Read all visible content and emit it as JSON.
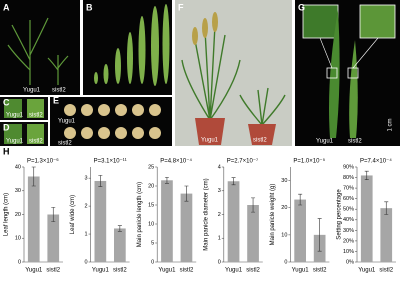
{
  "photos": {
    "A": {
      "label": "A",
      "texts": [
        "Yugu1",
        "sistl2"
      ]
    },
    "B": {
      "label": "B"
    },
    "C": {
      "label": "C",
      "texts": [
        "Yugu1",
        "sistl2"
      ]
    },
    "D": {
      "label": "D",
      "texts": [
        "Yugu1",
        "sistl2"
      ]
    },
    "E": {
      "label": "E",
      "texts": [
        "Yugu1",
        "sistl2"
      ]
    },
    "F": {
      "label": "F",
      "texts": [
        "Yugu1",
        "sistl2"
      ]
    },
    "G": {
      "label": "G",
      "texts": [
        "Yugu1",
        "sistl2",
        "1 cm"
      ]
    }
  },
  "panel_H": "H",
  "chart_data": [
    {
      "type": "bar",
      "ylabel": "Leaf length (cm)",
      "annotation": "P=1.3×10⁻⁶",
      "categories": [
        "Yugu1",
        "sistl2"
      ],
      "values": [
        36,
        20
      ],
      "errors": [
        4,
        3
      ],
      "color": "#a6a6a6",
      "ylim": [
        0,
        40
      ],
      "yticks": [
        0,
        10,
        20,
        30,
        40
      ]
    },
    {
      "type": "bar",
      "ylabel": "Leaf wide (cm)",
      "annotation": "P=3.1×10⁻¹¹",
      "categories": [
        "Yugu1",
        "sistl2"
      ],
      "values": [
        2.9,
        1.2
      ],
      "errors": [
        0.2,
        0.1
      ],
      "color": "#a6a6a6",
      "ylim": [
        0,
        3.4
      ],
      "yticks": [
        0,
        1,
        2,
        3
      ]
    },
    {
      "type": "bar",
      "ylabel": "Main panicle length (cm)",
      "annotation": "P=4.8×10⁻⁴",
      "categories": [
        "Yugu1",
        "sistl2"
      ],
      "values": [
        21.5,
        18
      ],
      "errors": [
        0.8,
        2
      ],
      "color": "#a6a6a6",
      "ylim": [
        0,
        25
      ],
      "yticks": [
        0,
        5,
        10,
        15,
        20,
        25
      ]
    },
    {
      "type": "bar",
      "ylabel": "Main panicle diameter (cm)",
      "annotation": "P=2.7×10⁻⁷",
      "categories": [
        "Yugu1",
        "sistl2"
      ],
      "values": [
        3.4,
        2.4
      ],
      "errors": [
        0.15,
        0.3
      ],
      "color": "#a6a6a6",
      "ylim": [
        0,
        4
      ],
      "yticks": [
        0,
        1,
        2,
        3,
        4
      ]
    },
    {
      "type": "bar",
      "ylabel": "Main panicle weight (g)",
      "annotation": "P=1.0×10⁻⁵",
      "categories": [
        "Yugu1",
        "sistl2"
      ],
      "values": [
        23,
        10
      ],
      "errors": [
        2,
        6
      ],
      "color": "#a6a6a6",
      "ylim": [
        0,
        35
      ],
      "yticks": [
        0,
        10,
        20,
        30
      ]
    },
    {
      "type": "bar",
      "ylabel": "Setting percentage",
      "annotation": "P=7.4×10⁻⁴",
      "categories": [
        "Yugu1",
        "sistl2"
      ],
      "values": [
        82,
        51
      ],
      "errors": [
        4,
        6
      ],
      "color": "#a6a6a6",
      "ylim": [
        0,
        90
      ],
      "yticks": [
        {
          "value": 0,
          "label": "0%"
        },
        {
          "value": 10,
          "label": "10%"
        },
        {
          "value": 20,
          "label": "20%"
        },
        {
          "value": 30,
          "label": "30%"
        },
        {
          "value": 40,
          "label": "40%"
        },
        {
          "value": 50,
          "label": "50%"
        },
        {
          "value": 60,
          "label": "60%"
        },
        {
          "value": 70,
          "label": "70%"
        },
        {
          "value": 80,
          "label": "80%"
        },
        {
          "value": 90,
          "label": "90%"
        }
      ]
    }
  ]
}
